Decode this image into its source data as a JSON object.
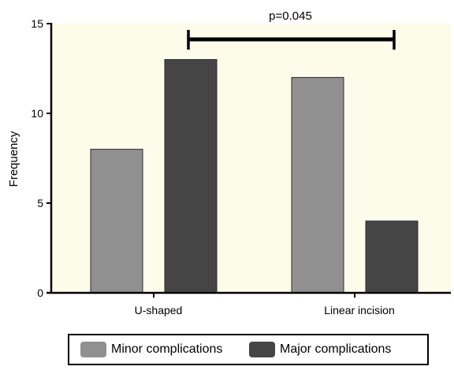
{
  "chart_data": {
    "type": "bar",
    "categories": [
      "U-shaped",
      "Linear incision"
    ],
    "series": [
      {
        "name": "Minor complications",
        "values": [
          8,
          12
        ],
        "color": "#909090"
      },
      {
        "name": "Major complications",
        "values": [
          13,
          4
        ],
        "color": "#454545"
      }
    ],
    "xlabel": "",
    "ylabel": "Frequency",
    "ylim": [
      0,
      15
    ],
    "yticks": [
      0,
      5,
      10,
      15
    ],
    "grid": false,
    "legend_position": "bottom",
    "annotation": {
      "text": "p=0.045",
      "between": [
        "U-shaped",
        "Linear incision"
      ]
    },
    "plot_background": "#fdfceb"
  }
}
